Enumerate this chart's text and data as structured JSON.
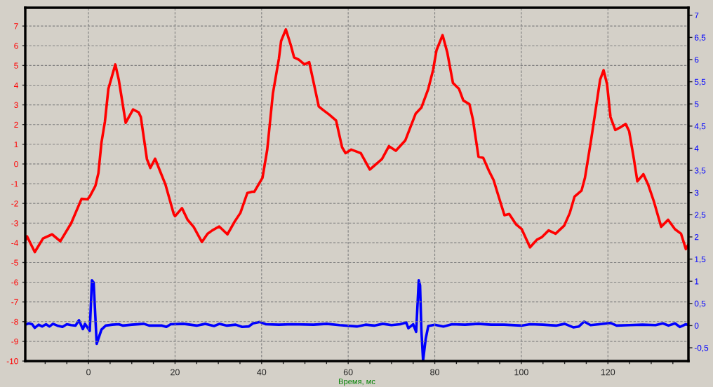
{
  "chart_data": {
    "type": "line",
    "xlabel": "Время, мс",
    "xlim": [
      -14.6,
      138.6
    ],
    "ylim": [
      -10,
      7.93
    ],
    "y2lim": [
      -0.8,
      7.17
    ],
    "xticks": [
      {
        "value": -10,
        "label": null
      },
      {
        "value": -5,
        "label": null
      },
      0,
      {
        "value": 5,
        "label": null
      },
      {
        "value": 10,
        "label": null
      },
      {
        "value": 15,
        "label": null
      },
      20,
      {
        "value": 25,
        "label": null
      },
      {
        "value": 30,
        "label": null
      },
      {
        "value": 35,
        "label": null
      },
      40,
      {
        "value": 45,
        "label": null
      },
      {
        "value": 50,
        "label": null
      },
      {
        "value": 55,
        "label": null
      },
      60,
      {
        "value": 65,
        "label": null
      },
      {
        "value": 70,
        "label": null
      },
      {
        "value": 75,
        "label": null
      },
      80,
      {
        "value": 85,
        "label": null
      },
      {
        "value": 90,
        "label": null
      },
      {
        "value": 95,
        "label": null
      },
      100,
      {
        "value": 105,
        "label": null
      },
      {
        "value": 110,
        "label": null
      },
      {
        "value": 115,
        "label": null
      },
      120,
      {
        "value": 125,
        "label": null
      },
      {
        "value": 130,
        "label": null
      },
      {
        "value": 135,
        "label": null
      }
    ],
    "yticks": [
      -10,
      -9,
      -8,
      -7,
      -6,
      -5,
      -4,
      -3,
      -2,
      -1,
      0,
      1,
      2,
      3,
      4,
      5,
      6,
      7
    ],
    "y2ticks": [
      {
        "value": -0.5,
        "label": "-0,5"
      },
      0,
      {
        "value": 0.5,
        "label": "0,5"
      },
      1,
      {
        "value": 1.5,
        "label": "1,5"
      },
      2,
      {
        "value": 2.5,
        "label": "2,5"
      },
      3,
      {
        "value": 3.5,
        "label": "3,5"
      },
      4,
      {
        "value": 4.5,
        "label": "4,5"
      },
      5,
      {
        "value": 5.5,
        "label": "5,5"
      },
      6,
      {
        "value": 6.5,
        "label": "6,5"
      },
      7
    ],
    "grid": true,
    "marker": "none",
    "line_style": "solid",
    "series": [
      {
        "color": "#ff0000",
        "x": [
          -14.6,
          -14.2,
          -12.4,
          -10.5,
          -8.4,
          -6.5,
          -4.0,
          -1.6,
          -0.2,
          0.3,
          1.6,
          2.3,
          3.0,
          3.8,
          4.6,
          6.2,
          7.0,
          8.6,
          10.3,
          11.6,
          12.1,
          13.5,
          14.3,
          15.4,
          16.5,
          17.8,
          19.7,
          20.0,
          21.6,
          22.9,
          24.3,
          26.2,
          27.5,
          28.6,
          30.2,
          32.1,
          33.7,
          35.1,
          36.7,
          37.8,
          38.3,
          40.2,
          41.3,
          42.6,
          44.0,
          44.5,
          45.6,
          46.7,
          47.5,
          48.6,
          49.9,
          51.0,
          52.1,
          53.2,
          54.2,
          55.6,
          57.2,
          58.6,
          59.4,
          60.7,
          62.9,
          65.0,
          67.8,
          69.4,
          71.0,
          73.2,
          75.6,
          76.9,
          78.5,
          79.6,
          80.4,
          81.8,
          82.9,
          84.2,
          85.6,
          86.6,
          88.0,
          88.8,
          90.1,
          91.2,
          92.5,
          93.6,
          94.5,
          96.1,
          97.2,
          98.8,
          100.1,
          102.0,
          103.6,
          104.7,
          106.3,
          107.9,
          109.9,
          111.2,
          112.3,
          113.9,
          114.7,
          116.1,
          117.4,
          118.2,
          119.0,
          119.8,
          120.6,
          121.7,
          122.8,
          124.1,
          124.9,
          126.0,
          126.8,
          128.2,
          129.3,
          130.6,
          132.3,
          133.9,
          135.5,
          136.9,
          138.0,
          138.6
        ],
        "values": [
          -3.9,
          -3.67,
          -4.47,
          -3.78,
          -3.57,
          -3.92,
          -3.01,
          -1.77,
          -1.79,
          -1.65,
          -1.11,
          -0.46,
          1.08,
          2.15,
          3.81,
          5.05,
          4.28,
          2.09,
          2.77,
          2.62,
          2.38,
          0.25,
          -0.2,
          0.27,
          -0.34,
          -1.05,
          -2.54,
          -2.65,
          -2.24,
          -2.83,
          -3.19,
          -3.96,
          -3.54,
          -3.37,
          -3.17,
          -3.57,
          -2.95,
          -2.48,
          -1.47,
          -1.41,
          -1.41,
          -0.7,
          0.73,
          3.57,
          5.35,
          6.24,
          6.83,
          6.06,
          5.41,
          5.29,
          5.05,
          5.17,
          4.05,
          2.92,
          2.74,
          2.51,
          2.21,
          0.84,
          0.55,
          0.73,
          0.55,
          -0.28,
          0.25,
          0.9,
          0.67,
          1.2,
          2.56,
          2.86,
          3.81,
          4.76,
          5.77,
          6.54,
          5.65,
          4.11,
          3.81,
          3.22,
          3.04,
          2.27,
          0.37,
          0.31,
          -0.34,
          -0.82,
          -1.47,
          -2.6,
          -2.54,
          -3.07,
          -3.31,
          -4.23,
          -3.84,
          -3.72,
          -3.37,
          -3.54,
          -3.13,
          -2.48,
          -1.65,
          -1.35,
          -0.7,
          1.2,
          3.1,
          4.28,
          4.76,
          4.05,
          2.38,
          1.73,
          1.85,
          2.03,
          1.67,
          0.25,
          -0.88,
          -0.52,
          -1.05,
          -1.89,
          -3.19,
          -2.83,
          -3.31,
          -3.54,
          -4.32,
          -4.08
        ]
      },
      {
        "color": "#0000ff",
        "axis": "y2",
        "x": [
          -14.6,
          -13.8,
          -13.0,
          -12.4,
          -11.5,
          -10.7,
          -9.8,
          -9.0,
          -8.2,
          -7.2,
          -6.0,
          -5.0,
          -4.0,
          -3.0,
          -2.2,
          -1.3,
          -0.8,
          0.3,
          0.8,
          1.2,
          1.9,
          3.0,
          4.0,
          5.5,
          7.0,
          8.0,
          10.0,
          12.8,
          14.0,
          17.0,
          18.0,
          19.0,
          22.0,
          25.0,
          27.0,
          29.0,
          30.3,
          32.0,
          34.0,
          35.5,
          37.0,
          38.0,
          39.6,
          41.0,
          44.0,
          47.0,
          52.0,
          55.0,
          58.0,
          62.0,
          64.0,
          66.0,
          68.0,
          70.0,
          72.0,
          73.4,
          73.9,
          75.0,
          75.7,
          76.3,
          76.6,
          76.9,
          77.3,
          77.9,
          78.5,
          80.0,
          82.0,
          84.0,
          87.0,
          90.0,
          93.0,
          96.0,
          100.0,
          102.0,
          105.0,
          108.0,
          110.0,
          112.0,
          113.3,
          114.5,
          116.0,
          118.0,
          120.6,
          122.0,
          125.0,
          128.0,
          131.0,
          132.7,
          134.0,
          135.5,
          136.6,
          138.0,
          138.6
        ],
        "values": [
          0.02,
          0.05,
          0.03,
          -0.05,
          0.02,
          -0.02,
          0.03,
          -0.02,
          0.04,
          0.0,
          -0.03,
          0.03,
          0.01,
          0.0,
          0.12,
          -0.08,
          0.04,
          -0.12,
          1.02,
          0.97,
          -0.41,
          -0.09,
          0.0,
          0.02,
          0.03,
          0.0,
          0.02,
          0.04,
          0.0,
          0.0,
          -0.03,
          0.03,
          0.04,
          0.0,
          0.04,
          -0.01,
          0.04,
          0.0,
          0.02,
          -0.03,
          -0.02,
          0.05,
          0.08,
          0.03,
          0.02,
          0.03,
          0.02,
          0.04,
          0.01,
          -0.02,
          0.02,
          0.0,
          0.04,
          0.01,
          0.03,
          0.07,
          -0.06,
          0.03,
          -0.14,
          1.02,
          0.91,
          -0.09,
          -0.79,
          -0.3,
          -0.01,
          0.02,
          -0.02,
          0.03,
          0.02,
          0.04,
          0.02,
          0.02,
          0.0,
          0.03,
          0.02,
          0.0,
          0.04,
          -0.04,
          -0.02,
          0.09,
          0.01,
          0.03,
          0.06,
          0.0,
          0.01,
          0.02,
          0.01,
          0.05,
          0.0,
          0.05,
          -0.03,
          0.03,
          0.01
        ]
      }
    ]
  }
}
